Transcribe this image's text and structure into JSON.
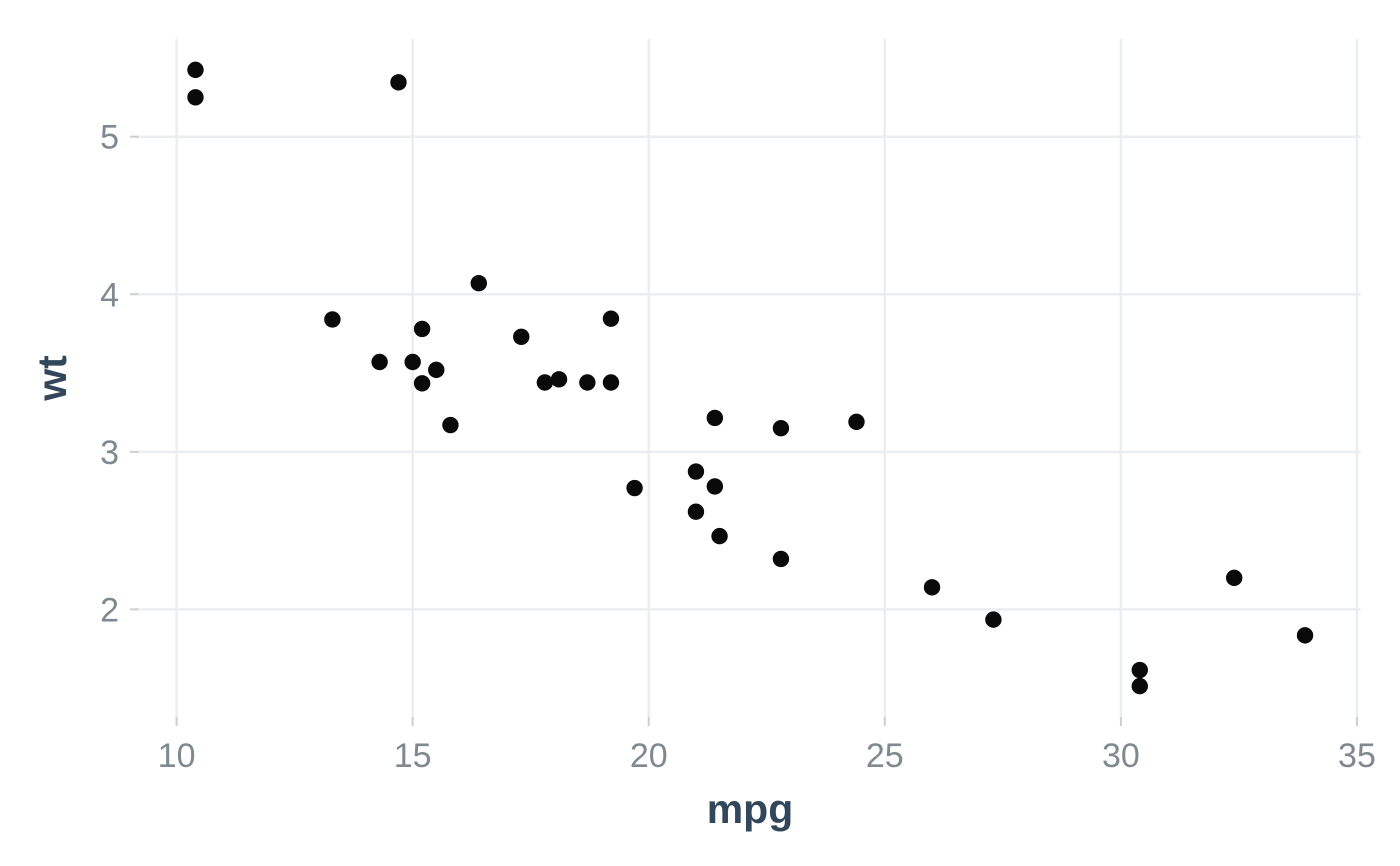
{
  "figure": {
    "background": "#ffffff"
  },
  "chart_data": {
    "type": "scatter",
    "title": "",
    "xlabel": "mpg",
    "ylabel": "wt",
    "points": [
      [
        21.0,
        2.62
      ],
      [
        21.0,
        2.875
      ],
      [
        22.8,
        2.32
      ],
      [
        21.4,
        3.215
      ],
      [
        18.7,
        3.44
      ],
      [
        18.1,
        3.46
      ],
      [
        14.3,
        3.57
      ],
      [
        24.4,
        3.19
      ],
      [
        22.8,
        3.15
      ],
      [
        19.2,
        3.44
      ],
      [
        17.8,
        3.44
      ],
      [
        16.4,
        4.07
      ],
      [
        17.3,
        3.73
      ],
      [
        15.2,
        3.78
      ],
      [
        10.4,
        5.25
      ],
      [
        10.4,
        5.424
      ],
      [
        14.7,
        5.345
      ],
      [
        32.4,
        2.2
      ],
      [
        30.4,
        1.615
      ],
      [
        33.9,
        1.835
      ],
      [
        21.5,
        2.465
      ],
      [
        15.5,
        3.52
      ],
      [
        15.2,
        3.435
      ],
      [
        13.3,
        3.84
      ],
      [
        19.2,
        3.845
      ],
      [
        27.3,
        1.935
      ],
      [
        26.0,
        2.14
      ],
      [
        30.4,
        1.513
      ],
      [
        15.8,
        3.17
      ],
      [
        19.7,
        2.77
      ],
      [
        15.0,
        3.57
      ],
      [
        21.4,
        2.78
      ]
    ],
    "xticks": [
      10,
      15,
      20,
      25,
      30,
      35
    ],
    "yticks": [
      2,
      3,
      4,
      5
    ],
    "xlim": [
      9.225,
      35.075
    ],
    "ylim": [
      1.317,
      5.62
    ],
    "grid": true,
    "legend": false,
    "styles": {
      "background": "#ffffff",
      "point_color": "#0a0a0a",
      "point_radius": 8.2,
      "grid_color": "#ebeef0",
      "grid_width": 2.5,
      "tick_mark_color": "#c9cfd1",
      "tick_mark_width": 2,
      "tick_label_color": "#7e8a8f",
      "axis_title_color": "#33475b"
    }
  }
}
